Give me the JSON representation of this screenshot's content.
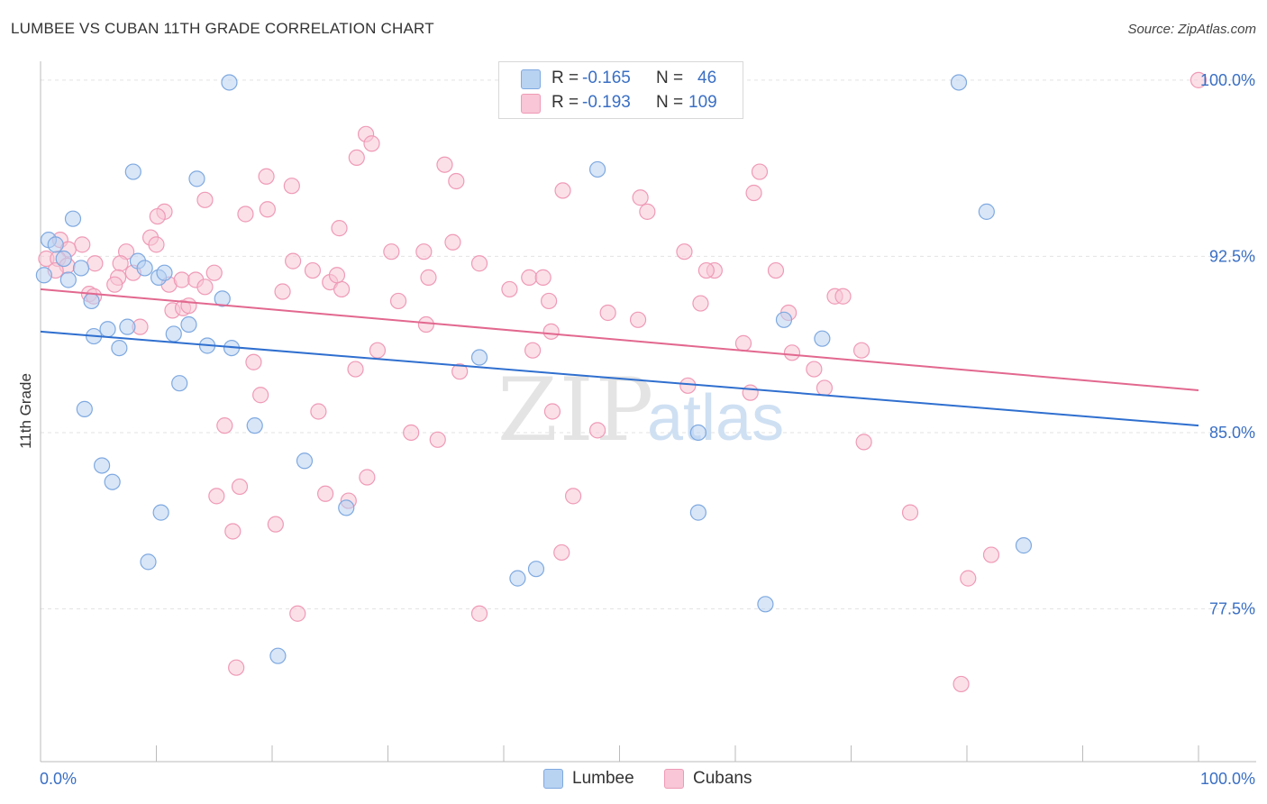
{
  "title": "LUMBEE VS CUBAN 11TH GRADE CORRELATION CHART",
  "source": "Source: ZipAtlas.com",
  "watermark": {
    "zip": "ZIP",
    "atlas": "atlas"
  },
  "colors": {
    "lumbee_fill": "#b8d2f2",
    "lumbee_stroke": "#7fa9e0",
    "lumbee_line": "#2f6fcf",
    "cubans_fill": "#f8c6d6",
    "cubans_stroke": "#ef9ab6",
    "cubans_line": "#e2688f",
    "tick_label": "#3a6fc4",
    "grid": "#e3e3e3"
  },
  "legend": {
    "rows": [
      {
        "r_label": "R =",
        "r_value": "-0.165",
        "n_label": "N =",
        "n_value": "46"
      },
      {
        "r_label": "R =",
        "r_value": "-0.193",
        "n_label": "N =",
        "n_value": "109"
      }
    ]
  },
  "bottom_legend": {
    "lumbee": "Lumbee",
    "cubans": "Cubans"
  },
  "chart_data": {
    "type": "scatter",
    "title": "LUMBEE VS CUBAN 11TH GRADE CORRELATION CHART",
    "xlabel": "",
    "ylabel": "11th Grade",
    "xlim": [
      0,
      100
    ],
    "ylim": [
      71.0,
      100.8
    ],
    "x_tick_labels": [
      "0.0%",
      "100.0%"
    ],
    "y_ticks": [
      77.5,
      85.0,
      92.5,
      100.0
    ],
    "y_tick_labels": [
      "77.5%",
      "85.0%",
      "92.5%",
      "100.0%"
    ],
    "grid": "horizontal dashed",
    "legend_position": "top-center",
    "series": [
      {
        "name": "Lumbee",
        "r": -0.165,
        "n": 46,
        "trend": {
          "x": [
            0,
            100
          ],
          "y": [
            89.3,
            85.3
          ]
        },
        "points": [
          [
            16.3,
            99.9
          ],
          [
            79.3,
            99.9
          ],
          [
            8.0,
            96.1
          ],
          [
            13.5,
            95.8
          ],
          [
            48.1,
            96.2
          ],
          [
            81.7,
            94.4
          ],
          [
            2.8,
            94.1
          ],
          [
            0.7,
            93.2
          ],
          [
            1.3,
            93.0
          ],
          [
            8.4,
            92.3
          ],
          [
            2.0,
            92.4
          ],
          [
            3.5,
            92.0
          ],
          [
            0.3,
            91.7
          ],
          [
            9.0,
            92.0
          ],
          [
            10.2,
            91.6
          ],
          [
            10.7,
            91.8
          ],
          [
            2.4,
            91.5
          ],
          [
            4.4,
            90.6
          ],
          [
            15.7,
            90.7
          ],
          [
            12.8,
            89.6
          ],
          [
            5.8,
            89.4
          ],
          [
            7.5,
            89.5
          ],
          [
            4.6,
            89.1
          ],
          [
            11.5,
            89.2
          ],
          [
            14.4,
            88.7
          ],
          [
            16.5,
            88.6
          ],
          [
            6.8,
            88.6
          ],
          [
            37.9,
            88.2
          ],
          [
            67.5,
            89.0
          ],
          [
            64.2,
            89.8
          ],
          [
            12.0,
            87.1
          ],
          [
            3.8,
            86.0
          ],
          [
            18.5,
            85.3
          ],
          [
            56.8,
            85.0
          ],
          [
            5.3,
            83.6
          ],
          [
            6.2,
            82.9
          ],
          [
            22.8,
            83.8
          ],
          [
            10.4,
            81.6
          ],
          [
            26.4,
            81.8
          ],
          [
            56.8,
            81.6
          ],
          [
            84.9,
            80.2
          ],
          [
            9.3,
            79.5
          ],
          [
            41.2,
            78.8
          ],
          [
            42.8,
            79.2
          ],
          [
            62.6,
            77.7
          ],
          [
            20.5,
            75.5
          ]
        ]
      },
      {
        "name": "Cubans",
        "r": -0.193,
        "n": 109,
        "trend": {
          "x": [
            0,
            100
          ],
          "y": [
            91.1,
            86.8
          ]
        },
        "points": [
          [
            100.0,
            100.0
          ],
          [
            28.1,
            97.7
          ],
          [
            28.6,
            97.3
          ],
          [
            27.3,
            96.7
          ],
          [
            34.9,
            96.4
          ],
          [
            62.1,
            96.1
          ],
          [
            19.5,
            95.9
          ],
          [
            35.9,
            95.7
          ],
          [
            21.7,
            95.5
          ],
          [
            45.1,
            95.3
          ],
          [
            61.6,
            95.2
          ],
          [
            14.2,
            94.9
          ],
          [
            51.8,
            95.0
          ],
          [
            10.7,
            94.4
          ],
          [
            17.7,
            94.3
          ],
          [
            19.6,
            94.5
          ],
          [
            10.1,
            94.2
          ],
          [
            52.4,
            94.4
          ],
          [
            25.8,
            93.7
          ],
          [
            9.5,
            93.3
          ],
          [
            35.6,
            93.1
          ],
          [
            1.7,
            93.2
          ],
          [
            3.6,
            93.0
          ],
          [
            10.0,
            93.0
          ],
          [
            2.4,
            92.8
          ],
          [
            30.3,
            92.7
          ],
          [
            33.1,
            92.7
          ],
          [
            55.6,
            92.7
          ],
          [
            7.4,
            92.7
          ],
          [
            0.5,
            92.4
          ],
          [
            1.5,
            92.4
          ],
          [
            4.7,
            92.2
          ],
          [
            6.9,
            92.2
          ],
          [
            21.8,
            92.3
          ],
          [
            37.9,
            92.2
          ],
          [
            2.3,
            92.1
          ],
          [
            1.3,
            91.9
          ],
          [
            8.0,
            91.8
          ],
          [
            23.5,
            91.9
          ],
          [
            58.2,
            91.9
          ],
          [
            63.5,
            91.9
          ],
          [
            15.0,
            91.8
          ],
          [
            57.5,
            91.9
          ],
          [
            6.7,
            91.6
          ],
          [
            11.1,
            91.3
          ],
          [
            33.5,
            91.6
          ],
          [
            42.2,
            91.6
          ],
          [
            43.4,
            91.6
          ],
          [
            12.2,
            91.5
          ],
          [
            13.4,
            91.5
          ],
          [
            25.0,
            91.4
          ],
          [
            6.4,
            91.3
          ],
          [
            14.2,
            91.2
          ],
          [
            26.0,
            91.1
          ],
          [
            20.9,
            91.0
          ],
          [
            40.5,
            91.1
          ],
          [
            4.2,
            90.9
          ],
          [
            4.6,
            90.8
          ],
          [
            68.6,
            90.8
          ],
          [
            69.3,
            90.8
          ],
          [
            30.9,
            90.6
          ],
          [
            43.9,
            90.6
          ],
          [
            57.0,
            90.5
          ],
          [
            11.4,
            90.2
          ],
          [
            12.3,
            90.3
          ],
          [
            12.8,
            90.4
          ],
          [
            49.0,
            90.1
          ],
          [
            64.6,
            90.1
          ],
          [
            51.6,
            89.8
          ],
          [
            33.3,
            89.6
          ],
          [
            8.6,
            89.5
          ],
          [
            44.1,
            89.3
          ],
          [
            60.7,
            88.8
          ],
          [
            29.1,
            88.5
          ],
          [
            42.5,
            88.5
          ],
          [
            64.9,
            88.4
          ],
          [
            70.9,
            88.5
          ],
          [
            18.4,
            88.0
          ],
          [
            27.2,
            87.7
          ],
          [
            36.2,
            87.6
          ],
          [
            66.8,
            87.7
          ],
          [
            55.9,
            87.0
          ],
          [
            67.7,
            86.9
          ],
          [
            61.3,
            86.7
          ],
          [
            19.0,
            86.6
          ],
          [
            24.0,
            85.9
          ],
          [
            44.2,
            85.9
          ],
          [
            15.9,
            85.3
          ],
          [
            32.0,
            85.0
          ],
          [
            34.3,
            84.7
          ],
          [
            48.1,
            85.1
          ],
          [
            71.1,
            84.6
          ],
          [
            28.2,
            83.1
          ],
          [
            17.2,
            82.7
          ],
          [
            24.6,
            82.4
          ],
          [
            26.6,
            82.1
          ],
          [
            46.0,
            82.3
          ],
          [
            15.2,
            82.3
          ],
          [
            75.1,
            81.6
          ],
          [
            16.6,
            80.8
          ],
          [
            20.3,
            81.1
          ],
          [
            45.0,
            79.9
          ],
          [
            82.1,
            79.8
          ],
          [
            80.1,
            78.8
          ],
          [
            22.2,
            77.3
          ],
          [
            37.9,
            77.3
          ],
          [
            16.9,
            75.0
          ],
          [
            79.5,
            74.3
          ],
          [
            25.6,
            91.7
          ]
        ]
      }
    ]
  }
}
